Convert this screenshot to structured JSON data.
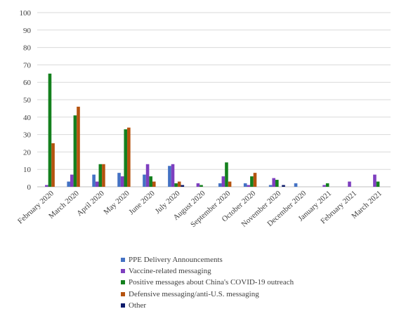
{
  "chart_data": {
    "type": "bar",
    "title": "",
    "xlabel": "",
    "ylabel": "",
    "ylim": [
      0,
      100
    ],
    "yticks": [
      "0",
      "10",
      "20",
      "30",
      "40",
      "50",
      "60",
      "70",
      "80",
      "90",
      "100"
    ],
    "grid": true,
    "legend_position": "bottom",
    "categories": [
      "February 2020",
      "March 2020",
      "April 2020",
      "May 2020",
      "June 2020",
      "July 2020",
      "August 2020",
      "September 2020",
      "October 2020",
      "November 2020",
      "December 2020",
      "January 2021",
      "February 2021",
      "March 2021"
    ],
    "series": [
      {
        "name": "PPE Delivery Announcements",
        "color": "#4472C4",
        "values": [
          0,
          3,
          7,
          8,
          7,
          12,
          0,
          2,
          2,
          1,
          2,
          0,
          0,
          0
        ]
      },
      {
        "name": "Vaccine-related messaging",
        "color": "#7E3FBF",
        "values": [
          1,
          7,
          3,
          6,
          13,
          13,
          2,
          6,
          1,
          5,
          0,
          1,
          3,
          7
        ]
      },
      {
        "name": "Positive messages about China's COVID-19 outreach",
        "color": "#14801E",
        "values": [
          65,
          41,
          13,
          33,
          6,
          2,
          1,
          14,
          6,
          4,
          0,
          2,
          0,
          3
        ]
      },
      {
        "name": "Defensive messaging/anti-U.S. messaging",
        "color": "#B5530F",
        "values": [
          25,
          46,
          13,
          34,
          3,
          3,
          0,
          3,
          8,
          0,
          0,
          0,
          0,
          0
        ]
      },
      {
        "name": "Other",
        "color": "#0D1B6B",
        "values": [
          0,
          0,
          0,
          0,
          0,
          1,
          0,
          0,
          0,
          1,
          0,
          0,
          0,
          0
        ]
      }
    ]
  }
}
